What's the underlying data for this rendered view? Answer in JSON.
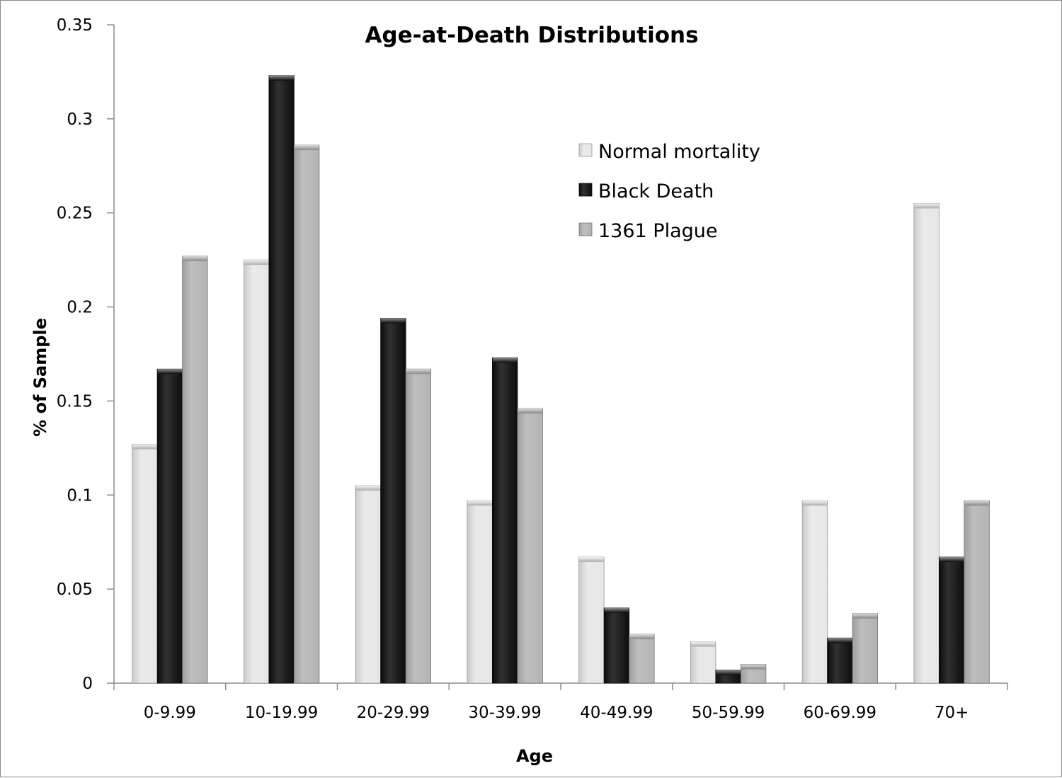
{
  "chart_data": {
    "type": "bar",
    "title": "Age-at-Death Distributions",
    "xlabel": "Age",
    "ylabel": "% of Sample",
    "ylim": [
      0,
      0.35
    ],
    "yticks": [
      "0",
      "0.05",
      "0.1",
      "0.15",
      "0.2",
      "0.25",
      "0.3",
      "0.35"
    ],
    "ytick_values": [
      0,
      0.05,
      0.1,
      0.15,
      0.2,
      0.25,
      0.3,
      0.35
    ],
    "categories": [
      "0-9.99",
      "10-19.99",
      "20-29.99",
      "30-39.99",
      "40-49.99",
      "50-59.99",
      "60-69.99",
      "70+"
    ],
    "series": [
      {
        "name": "Normal mortality",
        "color": "#e6e6e6",
        "values": [
          0.127,
          0.225,
          0.105,
          0.097,
          0.067,
          0.022,
          0.097,
          0.255
        ]
      },
      {
        "name": "Black Death",
        "color": "#0d0d0d",
        "values": [
          0.167,
          0.323,
          0.194,
          0.173,
          0.04,
          0.007,
          0.024,
          0.067
        ]
      },
      {
        "name": "1361 Plague",
        "color": "#b3b3b3",
        "values": [
          0.227,
          0.286,
          0.167,
          0.146,
          0.026,
          0.01,
          0.037,
          0.097
        ]
      }
    ],
    "legend_position": "top-right-inside",
    "grid": false
  }
}
